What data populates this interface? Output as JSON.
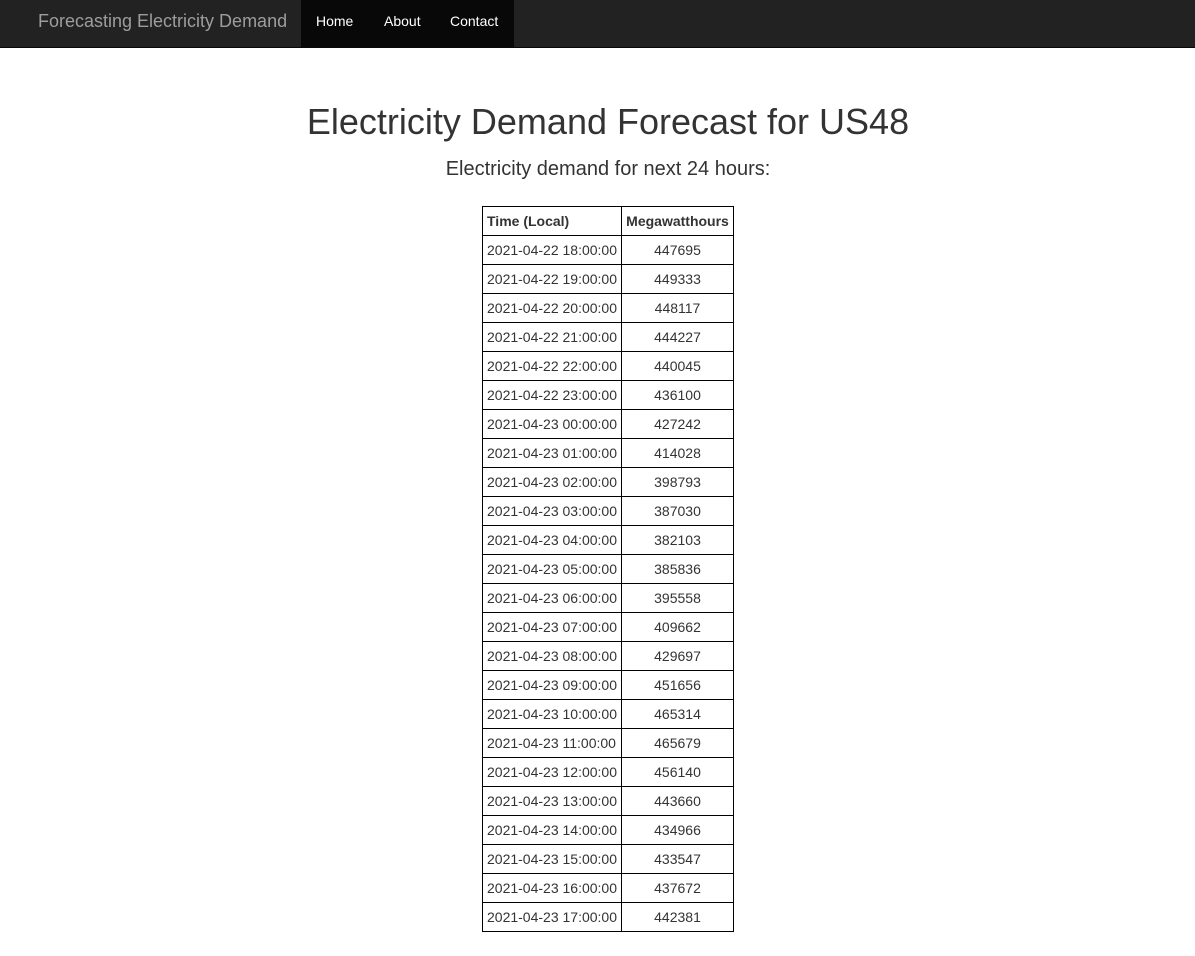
{
  "navbar": {
    "brand": "Forecasting Electricity Demand",
    "links": [
      "Home",
      "About",
      "Contact"
    ],
    "background": "#222222",
    "active_background": "#080808"
  },
  "page": {
    "title": "Electricity Demand Forecast for US48",
    "subtitle": "Electricity demand for next 24 hours:"
  },
  "table": {
    "headers": [
      "Time (Local)",
      "Megawatthours"
    ],
    "rows": [
      [
        "2021-04-22 18:00:00",
        "447695"
      ],
      [
        "2021-04-22 19:00:00",
        "449333"
      ],
      [
        "2021-04-22 20:00:00",
        "448117"
      ],
      [
        "2021-04-22 21:00:00",
        "444227"
      ],
      [
        "2021-04-22 22:00:00",
        "440045"
      ],
      [
        "2021-04-22 23:00:00",
        "436100"
      ],
      [
        "2021-04-23 00:00:00",
        "427242"
      ],
      [
        "2021-04-23 01:00:00",
        "414028"
      ],
      [
        "2021-04-23 02:00:00",
        "398793"
      ],
      [
        "2021-04-23 03:00:00",
        "387030"
      ],
      [
        "2021-04-23 04:00:00",
        "382103"
      ],
      [
        "2021-04-23 05:00:00",
        "385836"
      ],
      [
        "2021-04-23 06:00:00",
        "395558"
      ],
      [
        "2021-04-23 07:00:00",
        "409662"
      ],
      [
        "2021-04-23 08:00:00",
        "429697"
      ],
      [
        "2021-04-23 09:00:00",
        "451656"
      ],
      [
        "2021-04-23 10:00:00",
        "465314"
      ],
      [
        "2021-04-23 11:00:00",
        "465679"
      ],
      [
        "2021-04-23 12:00:00",
        "456140"
      ],
      [
        "2021-04-23 13:00:00",
        "443660"
      ],
      [
        "2021-04-23 14:00:00",
        "434966"
      ],
      [
        "2021-04-23 15:00:00",
        "433547"
      ],
      [
        "2021-04-23 16:00:00",
        "437672"
      ],
      [
        "2021-04-23 17:00:00",
        "442381"
      ]
    ]
  }
}
